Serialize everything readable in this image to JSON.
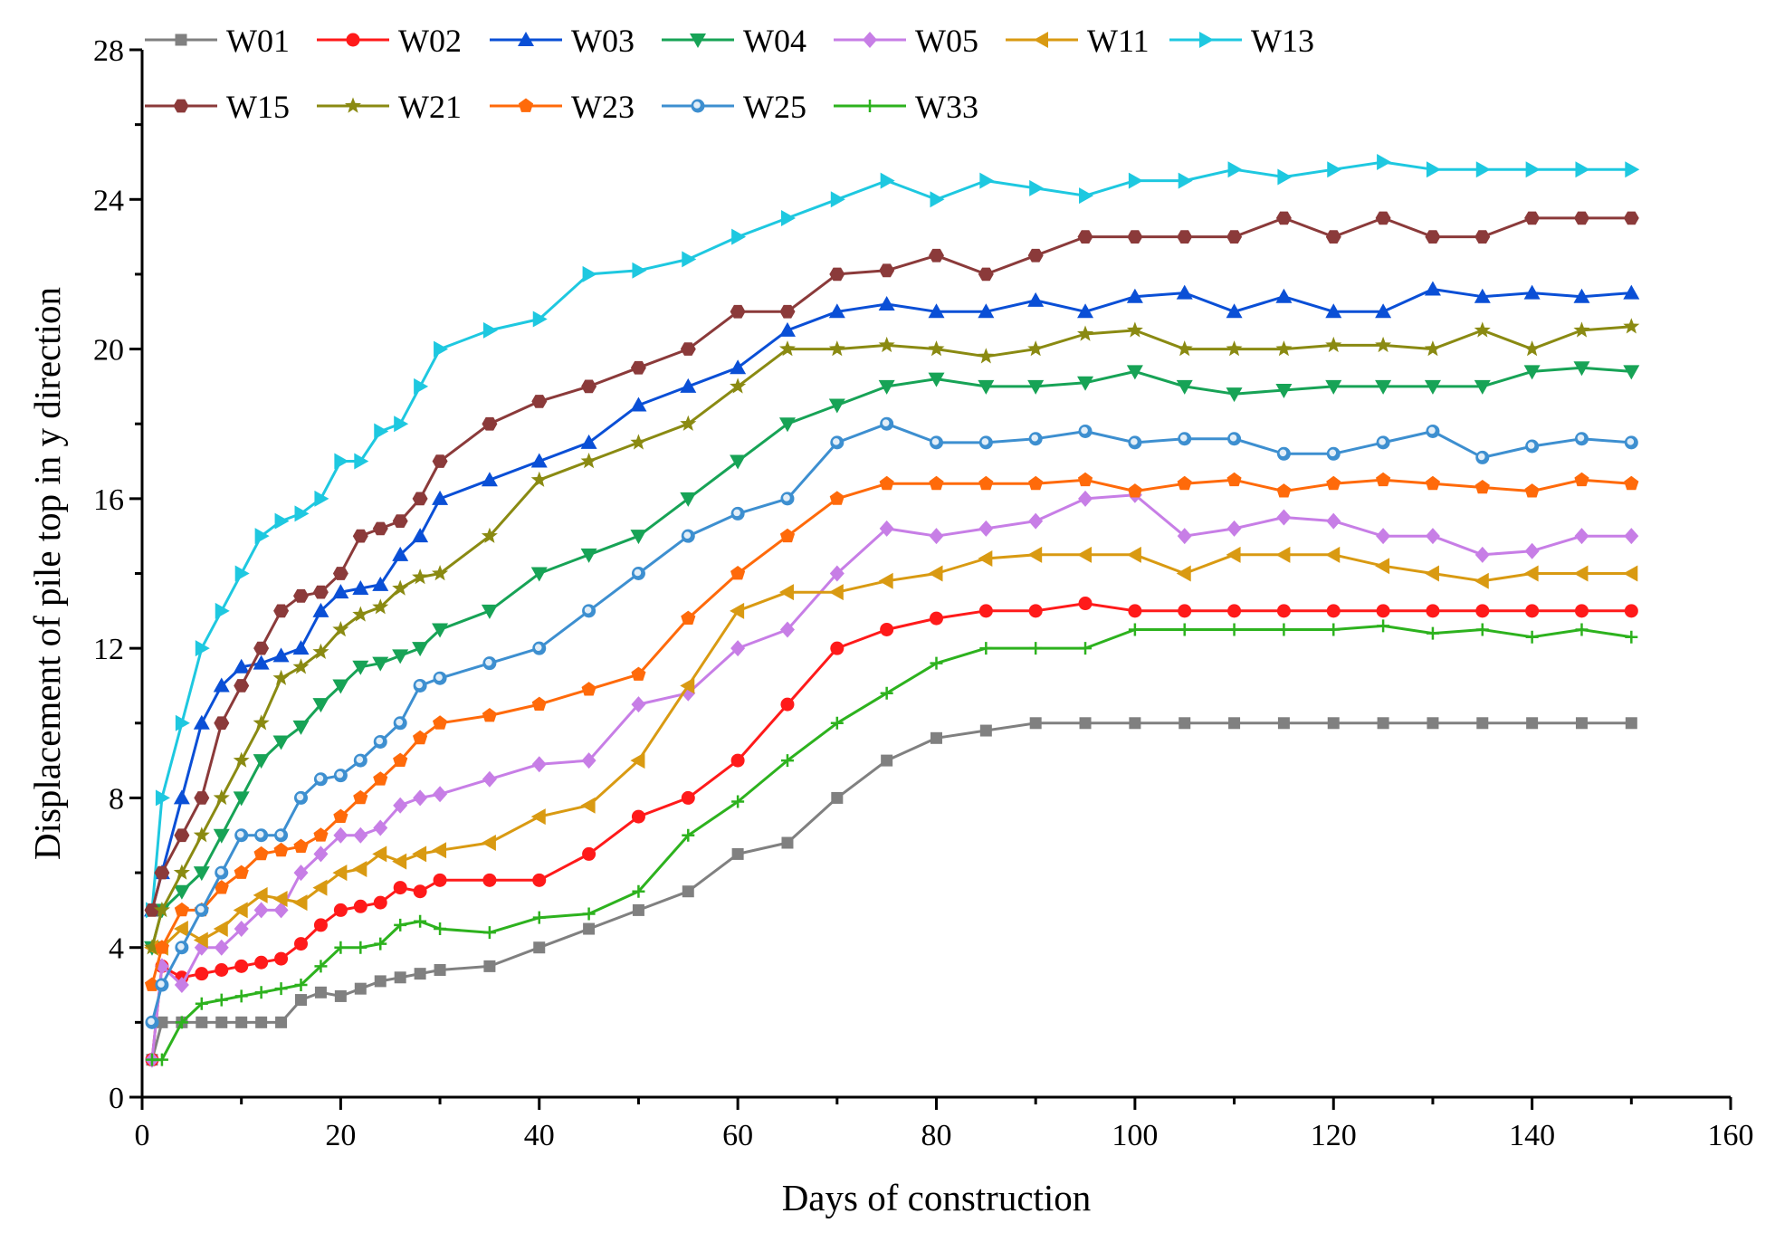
{
  "chart_data": {
    "type": "line",
    "title": "",
    "xlabel": "Days of construction",
    "ylabel": "Displacement of pile top in y direction",
    "xlim": [
      0,
      160
    ],
    "ylim": [
      0,
      28
    ],
    "xticks": [
      0,
      20,
      40,
      60,
      80,
      100,
      120,
      140,
      160
    ],
    "yticks": [
      0,
      4,
      8,
      12,
      16,
      20,
      24,
      28
    ],
    "grid": false,
    "legend_position": "top",
    "series": [
      {
        "name": "W01",
        "color": "#808080",
        "marker": "square",
        "x": [
          1,
          2,
          4,
          6,
          8,
          10,
          12,
          14,
          16,
          18,
          20,
          22,
          24,
          26,
          28,
          30,
          35,
          40,
          45,
          50,
          55,
          60,
          65,
          70,
          75,
          80,
          85,
          90,
          95,
          100,
          105,
          110,
          115,
          120,
          125,
          130,
          135,
          140,
          145,
          150
        ],
        "y": [
          1,
          2,
          2,
          2,
          2,
          2,
          2,
          2,
          2.6,
          2.8,
          2.7,
          2.9,
          3.1,
          3.2,
          3.3,
          3.4,
          3.5,
          4,
          4.5,
          5,
          5.5,
          6.5,
          6.8,
          8,
          9,
          9.6,
          9.8,
          10,
          10,
          10,
          10,
          10,
          10,
          10,
          10,
          10,
          10,
          10,
          10,
          10
        ]
      },
      {
        "name": "W02",
        "color": "#ff1a1a",
        "marker": "circle",
        "x": [
          1,
          2,
          4,
          6,
          8,
          10,
          12,
          14,
          16,
          18,
          20,
          22,
          24,
          26,
          28,
          30,
          35,
          40,
          45,
          50,
          55,
          60,
          65,
          70,
          75,
          80,
          85,
          90,
          95,
          100,
          105,
          110,
          115,
          120,
          125,
          130,
          135,
          140,
          145,
          150
        ],
        "y": [
          1,
          3.5,
          3.2,
          3.3,
          3.4,
          3.5,
          3.6,
          3.7,
          4.1,
          4.6,
          5,
          5.1,
          5.2,
          5.6,
          5.5,
          5.8,
          5.8,
          5.8,
          6.5,
          7.5,
          8,
          9,
          10.5,
          12,
          12.5,
          12.8,
          13,
          13,
          13.2,
          13,
          13,
          13,
          13,
          13,
          13,
          13,
          13,
          13,
          13,
          13
        ]
      },
      {
        "name": "W03",
        "color": "#0a4fd6",
        "marker": "triangle-up",
        "x": [
          1,
          2,
          4,
          6,
          8,
          10,
          12,
          14,
          16,
          18,
          20,
          22,
          24,
          26,
          28,
          30,
          35,
          40,
          45,
          50,
          55,
          60,
          65,
          70,
          75,
          80,
          85,
          90,
          95,
          100,
          105,
          110,
          115,
          120,
          125,
          130,
          135,
          140,
          145,
          150
        ],
        "y": [
          5,
          6,
          8,
          10,
          11,
          11.5,
          11.6,
          11.8,
          12,
          13,
          13.5,
          13.6,
          13.7,
          14.5,
          15,
          16,
          16.5,
          17,
          17.5,
          18.5,
          19,
          19.5,
          20.5,
          21,
          21.2,
          21,
          21,
          21.3,
          21,
          21.4,
          21.5,
          21,
          21.4,
          21,
          21,
          21.6,
          21.4,
          21.5,
          21.4,
          21.5
        ]
      },
      {
        "name": "W04",
        "color": "#17a356",
        "marker": "triangle-down",
        "x": [
          1,
          2,
          4,
          6,
          8,
          10,
          12,
          14,
          16,
          18,
          20,
          22,
          24,
          26,
          28,
          30,
          35,
          40,
          45,
          50,
          55,
          60,
          65,
          70,
          75,
          80,
          85,
          90,
          95,
          100,
          105,
          110,
          115,
          120,
          125,
          130,
          135,
          140,
          145,
          150
        ],
        "y": [
          4,
          5,
          5.5,
          6,
          7,
          8,
          9,
          9.5,
          9.9,
          10.5,
          11,
          11.5,
          11.6,
          11.8,
          12,
          12.5,
          13,
          14,
          14.5,
          15,
          16,
          17,
          18,
          18.5,
          19,
          19.2,
          19,
          19,
          19.1,
          19.4,
          19,
          18.8,
          18.9,
          19,
          19,
          19,
          19,
          19.4,
          19.5,
          19.4
        ]
      },
      {
        "name": "W05",
        "color": "#c77ee6",
        "marker": "diamond",
        "x": [
          1,
          2,
          4,
          6,
          8,
          10,
          12,
          14,
          16,
          18,
          20,
          22,
          24,
          26,
          28,
          30,
          35,
          40,
          45,
          50,
          55,
          60,
          65,
          70,
          75,
          80,
          85,
          90,
          95,
          100,
          105,
          110,
          115,
          120,
          125,
          130,
          135,
          140,
          145,
          150
        ],
        "y": [
          1,
          3.5,
          3,
          4,
          4,
          4.5,
          5,
          5,
          6,
          6.5,
          7,
          7,
          7.2,
          7.8,
          8,
          8.1,
          8.5,
          8.9,
          9,
          10.5,
          10.8,
          12,
          12.5,
          14,
          15.2,
          15,
          15.2,
          15.4,
          16,
          16.1,
          15,
          15.2,
          15.5,
          15.4,
          15,
          15,
          14.5,
          14.6,
          15,
          15
        ]
      },
      {
        "name": "W11",
        "color": "#d99a12",
        "marker": "triangle-left",
        "x": [
          1,
          2,
          4,
          6,
          8,
          10,
          12,
          14,
          16,
          18,
          20,
          22,
          24,
          26,
          28,
          30,
          35,
          40,
          45,
          50,
          55,
          60,
          65,
          70,
          75,
          80,
          85,
          90,
          95,
          100,
          105,
          110,
          115,
          120,
          125,
          130,
          135,
          140,
          145,
          150
        ],
        "y": [
          4,
          4,
          4.5,
          4.2,
          4.5,
          5,
          5.4,
          5.3,
          5.2,
          5.6,
          6,
          6.1,
          6.5,
          6.3,
          6.5,
          6.6,
          6.8,
          7.5,
          7.8,
          9,
          11,
          13,
          13.5,
          13.5,
          13.8,
          14,
          14.4,
          14.5,
          14.5,
          14.5,
          14,
          14.5,
          14.5,
          14.5,
          14.2,
          14,
          13.8,
          14,
          14,
          14
        ]
      },
      {
        "name": "W13",
        "color": "#1ec8e0",
        "marker": "triangle-right",
        "x": [
          1,
          2,
          4,
          6,
          8,
          10,
          12,
          14,
          16,
          18,
          20,
          22,
          24,
          26,
          28,
          30,
          35,
          40,
          45,
          50,
          55,
          60,
          65,
          70,
          75,
          80,
          85,
          90,
          95,
          100,
          105,
          110,
          115,
          120,
          125,
          130,
          135,
          140,
          145,
          150
        ],
        "y": [
          5,
          8,
          10,
          12,
          13,
          14,
          15,
          15.4,
          15.6,
          16,
          17,
          17,
          17.8,
          18,
          19,
          20,
          20.5,
          20.8,
          22,
          22.1,
          22.4,
          23,
          23.5,
          24,
          24.5,
          24,
          24.5,
          24.3,
          24.1,
          24.5,
          24.5,
          24.8,
          24.6,
          24.8,
          25,
          24.8,
          24.8,
          24.8,
          24.8,
          24.8
        ]
      },
      {
        "name": "W15",
        "color": "#8b3a3a",
        "marker": "hexagon",
        "x": [
          1,
          2,
          4,
          6,
          8,
          10,
          12,
          14,
          16,
          18,
          20,
          22,
          24,
          26,
          28,
          30,
          35,
          40,
          45,
          50,
          55,
          60,
          65,
          70,
          75,
          80,
          85,
          90,
          95,
          100,
          105,
          110,
          115,
          120,
          125,
          130,
          135,
          140,
          145,
          150
        ],
        "y": [
          5,
          6,
          7,
          8,
          10,
          11,
          12,
          13,
          13.4,
          13.5,
          14,
          15,
          15.2,
          15.4,
          16,
          17,
          18,
          18.6,
          19,
          19.5,
          20,
          21,
          21,
          22,
          22.1,
          22.5,
          22,
          22.5,
          23,
          23,
          23,
          23,
          23.5,
          23,
          23.5,
          23,
          23,
          23.5,
          23.5,
          23.5
        ]
      },
      {
        "name": "W21",
        "color": "#8a8a12",
        "marker": "star",
        "x": [
          1,
          2,
          4,
          6,
          8,
          10,
          12,
          14,
          16,
          18,
          20,
          22,
          24,
          26,
          28,
          30,
          35,
          40,
          45,
          50,
          55,
          60,
          65,
          70,
          75,
          80,
          85,
          90,
          95,
          100,
          105,
          110,
          115,
          120,
          125,
          130,
          135,
          140,
          145,
          150
        ],
        "y": [
          4,
          5,
          6,
          7,
          8,
          9,
          10,
          11.2,
          11.5,
          11.9,
          12.5,
          12.9,
          13.1,
          13.6,
          13.9,
          14,
          15,
          16.5,
          17,
          17.5,
          18,
          19,
          20,
          20,
          20.1,
          20,
          19.8,
          20,
          20.4,
          20.5,
          20,
          20,
          20,
          20.1,
          20.1,
          20,
          20.5,
          20,
          20.5,
          20.6
        ]
      },
      {
        "name": "W23",
        "color": "#ff6a0a",
        "marker": "pentagon",
        "x": [
          1,
          2,
          4,
          6,
          8,
          10,
          12,
          14,
          16,
          18,
          20,
          22,
          24,
          26,
          28,
          30,
          35,
          40,
          45,
          50,
          55,
          60,
          65,
          70,
          75,
          80,
          85,
          90,
          95,
          100,
          105,
          110,
          115,
          120,
          125,
          130,
          135,
          140,
          145,
          150
        ],
        "y": [
          3,
          4,
          5,
          5,
          5.6,
          6,
          6.5,
          6.6,
          6.7,
          7,
          7.5,
          8,
          8.5,
          9,
          9.6,
          10,
          10.2,
          10.5,
          10.9,
          11.3,
          12.8,
          14,
          15,
          16,
          16.4,
          16.4,
          16.4,
          16.4,
          16.5,
          16.2,
          16.4,
          16.5,
          16.2,
          16.4,
          16.5,
          16.4,
          16.3,
          16.2,
          16.5,
          16.4
        ]
      },
      {
        "name": "W25",
        "color": "#3d8fd0",
        "marker": "sphere",
        "x": [
          1,
          2,
          4,
          6,
          8,
          10,
          12,
          14,
          16,
          18,
          20,
          22,
          24,
          26,
          28,
          30,
          35,
          40,
          45,
          50,
          55,
          60,
          65,
          70,
          75,
          80,
          85,
          90,
          95,
          100,
          105,
          110,
          115,
          120,
          125,
          130,
          135,
          140,
          145,
          150
        ],
        "y": [
          2,
          3,
          4,
          5,
          6,
          7,
          7,
          7,
          8,
          8.5,
          8.6,
          9,
          9.5,
          10,
          11,
          11.2,
          11.6,
          12,
          13,
          14,
          15,
          15.6,
          16,
          17.5,
          18,
          17.5,
          17.5,
          17.6,
          17.8,
          17.5,
          17.6,
          17.6,
          17.2,
          17.2,
          17.5,
          17.8,
          17.1,
          17.4,
          17.6,
          17.5
        ]
      },
      {
        "name": "W33",
        "color": "#2db21e",
        "marker": "plus",
        "x": [
          1,
          2,
          4,
          6,
          8,
          10,
          12,
          14,
          16,
          18,
          20,
          22,
          24,
          26,
          28,
          30,
          35,
          40,
          45,
          50,
          55,
          60,
          65,
          70,
          75,
          80,
          85,
          90,
          95,
          100,
          105,
          110,
          115,
          120,
          125,
          130,
          135,
          140,
          145,
          150
        ],
        "y": [
          1,
          1,
          2,
          2.5,
          2.6,
          2.7,
          2.8,
          2.9,
          3,
          3.5,
          4,
          4,
          4.1,
          4.6,
          4.7,
          4.5,
          4.4,
          4.8,
          4.9,
          5.5,
          7,
          7.9,
          9,
          10,
          10.8,
          11.6,
          12,
          12,
          12,
          12.5,
          12.5,
          12.5,
          12.5,
          12.5,
          12.6,
          12.4,
          12.5,
          12.3,
          12.5,
          12.3
        ]
      }
    ]
  }
}
